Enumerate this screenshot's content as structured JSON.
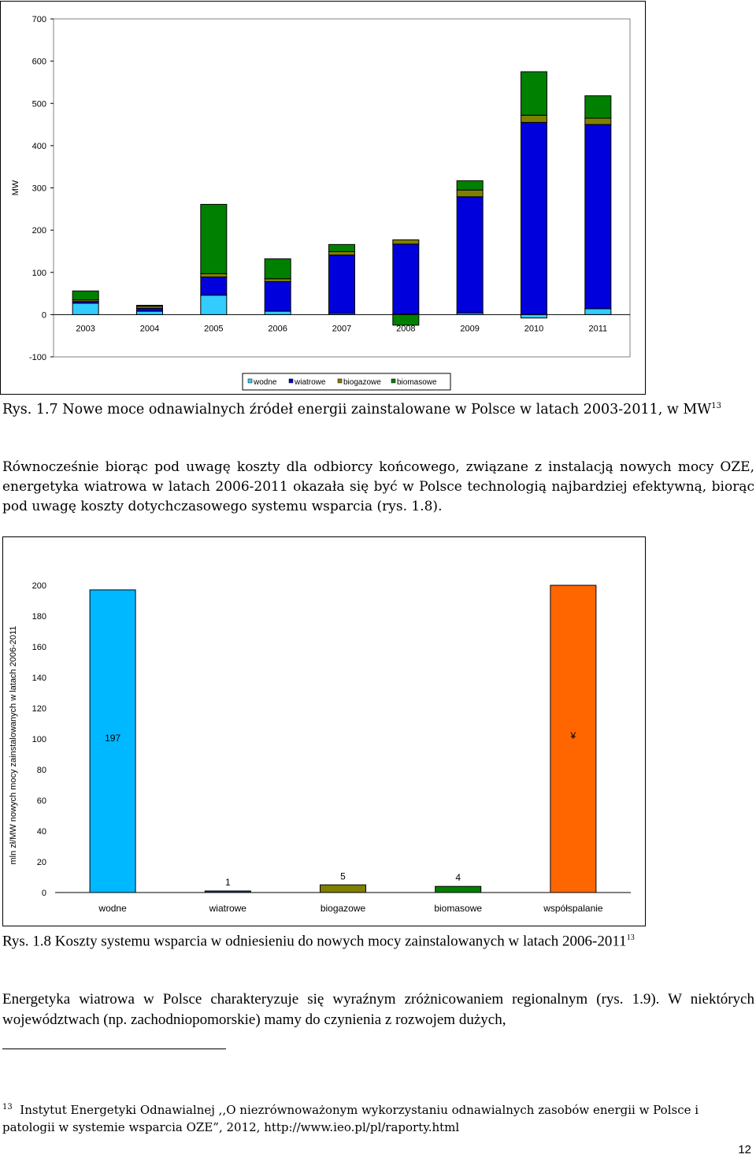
{
  "chart_data": [
    {
      "type": "bar",
      "stacked": true,
      "categories": [
        "2003",
        "2004",
        "2005",
        "2006",
        "2007",
        "2008",
        "2009",
        "2010",
        "2011"
      ],
      "ylabel": "MW",
      "ylim": [
        -100,
        700
      ],
      "yticks": [
        -100,
        0,
        100,
        200,
        300,
        400,
        500,
        600,
        700
      ],
      "legend_position": "bottom",
      "series": [
        {
          "name": "wodne",
          "color": "#33CCFF",
          "values": [
            27,
            8,
            46,
            8,
            3,
            2,
            4,
            -8,
            14
          ]
        },
        {
          "name": "wiatrowe",
          "color": "#0000DD",
          "values": [
            4,
            7,
            43,
            70,
            138,
            165,
            275,
            455,
            436
          ]
        },
        {
          "name": "biogazowe",
          "color": "#808000",
          "values": [
            4,
            5,
            8,
            7,
            8,
            10,
            16,
            17,
            15
          ]
        },
        {
          "name": "biomasowe",
          "color": "#008000",
          "values": [
            21,
            2,
            164,
            47,
            17,
            0,
            22,
            103,
            53
          ]
        }
      ],
      "negative_extra": [
        {
          "category": "2008",
          "series": "biomasowe",
          "value": -25
        }
      ]
    },
    {
      "type": "bar",
      "categories": [
        "wodne",
        "wiatrowe",
        "biogazowe",
        "biomasowe",
        "współspalanie"
      ],
      "values": [
        197,
        1,
        5,
        4,
        200
      ],
      "data_labels": [
        "197",
        "1",
        "5",
        "4",
        "¥"
      ],
      "colors": [
        "#00B8FF",
        "#1F3A93",
        "#7F7F00",
        "#007F00",
        "#FF6600"
      ],
      "ylabel": "mln zł/MW nowych mocy zainstalowanych w latach 2006-2011",
      "ylim": [
        0,
        200
      ],
      "yticks": [
        0,
        20,
        40,
        60,
        80,
        100,
        120,
        140,
        160,
        180,
        200
      ]
    }
  ],
  "caption1": {
    "text": "Rys. 1.7 Nowe moce odnawialnych źródeł energii zainstalowane w Polsce w latach 2003-2011, w MW",
    "sup": "13"
  },
  "paragraph1": "Równocześnie biorąc pod uwagę koszty dla odbiorcy końcowego, związane z instalacją nowych mocy OZE, energetyka wiatrowa w latach 2006-2011 okazała się być w Polsce technologią najbardziej efektywną, biorąc pod uwagę koszty dotychczasowego systemu wsparcia (rys. 1.8).",
  "caption2": {
    "text": "Rys. 1.8 Koszty systemu wsparcia w odniesieniu do nowych mocy zainstalowanych w latach 2006-2011",
    "sup": "13"
  },
  "paragraph2": "Energetyka wiatrowa w Polsce charakteryzuje się wyraźnym zróżnicowaniem regionalnym (rys. 1.9). W niektórych województwach (np. zachodniopomorskie) mamy do czynienia z rozwojem dużych,",
  "footnote": {
    "number": "13",
    "text": "Instytut Energetyki Odnawialnej ,,O niezrównoważonym wykorzystaniu odnawialnych zasobów energii w Polsce i patologii w systemie wsparcia OZE”, 2012, http://www.ieo.pl/pl/raporty.html"
  },
  "page_number": "12"
}
